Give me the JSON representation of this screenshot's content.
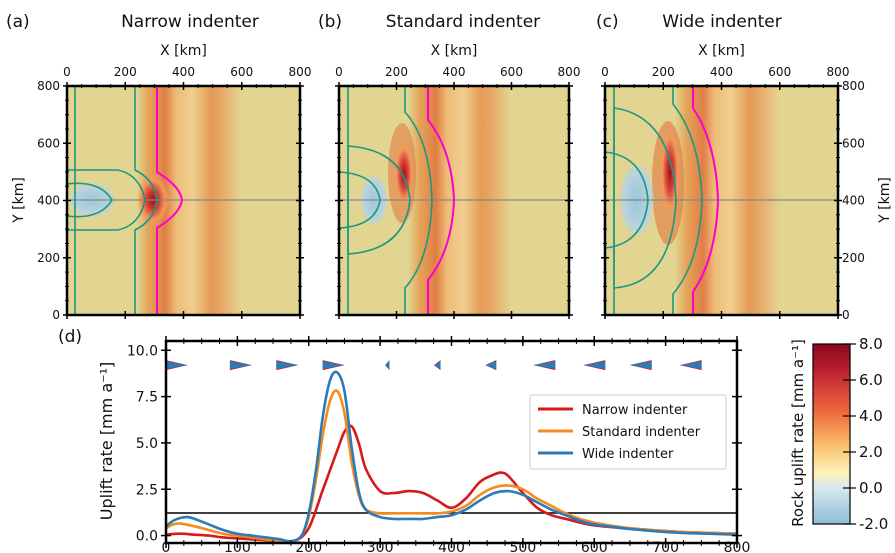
{
  "colors": {
    "narrow": "#d7191c",
    "standard": "#f48b1f",
    "wide": "#2b7bba",
    "plate_boundary": "#ff00cc",
    "contour": "#1a9980",
    "section_line": "#888888",
    "background_field": "#e2d592"
  },
  "maps": [
    {
      "letter": "(a)",
      "title": "Narrow indenter"
    },
    {
      "letter": "(b)",
      "title": "Standard indenter"
    },
    {
      "letter": "(c)",
      "title": "Wide indenter"
    }
  ],
  "map_axes": {
    "xlabel": "X [km]",
    "ylabel": "Y [km]",
    "xticks": [
      "0",
      "200",
      "400",
      "600",
      "800"
    ],
    "yticks": [
      "0",
      "200",
      "400",
      "600",
      "800"
    ]
  },
  "profile_panel": {
    "letter": "(d)",
    "ylabel": "Uplift  rate [mm a⁻¹]",
    "xticks": [
      "0",
      "100",
      "200",
      "300",
      "400",
      "500",
      "600",
      "700",
      "800"
    ],
    "yticks": [
      "0.0",
      "2.5",
      "5.0",
      "7.5",
      "10.0"
    ]
  },
  "colorbar": {
    "label": "Rock uplift rate  [mm a⁻¹]",
    "ticks": [
      "8.0",
      "6.0",
      "4.0",
      "2.0",
      "0.0",
      "-2.0"
    ]
  },
  "chart_data": [
    {
      "type": "line",
      "title": "",
      "xlabel": "",
      "ylabel": "Uplift  rate [mm a⁻¹]",
      "xlim": [
        0,
        800
      ],
      "ylim": [
        -0.4,
        10.5
      ],
      "grid": false,
      "legend": "right",
      "series": [
        {
          "name": "Narrow indenter",
          "x": [
            0,
            20,
            40,
            60,
            80,
            100,
            120,
            140,
            160,
            180,
            200,
            220,
            240,
            250,
            260,
            270,
            280,
            300,
            320,
            340,
            360,
            380,
            400,
            420,
            440,
            460,
            470,
            480,
            500,
            520,
            540,
            560,
            580,
            600,
            640,
            680,
            720,
            760,
            800
          ],
          "y": [
            0.05,
            0.1,
            0.05,
            0.0,
            -0.1,
            -0.15,
            -0.2,
            -0.25,
            -0.3,
            -0.3,
            0.4,
            2.5,
            4.6,
            5.6,
            5.9,
            5.0,
            3.6,
            2.4,
            2.3,
            2.4,
            2.3,
            1.9,
            1.5,
            2.0,
            2.9,
            3.3,
            3.4,
            3.2,
            2.3,
            1.5,
            1.1,
            0.9,
            0.7,
            0.55,
            0.4,
            0.3,
            0.2,
            0.15,
            0.1
          ]
        },
        {
          "name": "Standard indenter",
          "x": [
            0,
            10,
            20,
            40,
            60,
            80,
            100,
            120,
            140,
            160,
            175,
            190,
            200,
            210,
            220,
            230,
            240,
            250,
            260,
            270,
            280,
            300,
            320,
            340,
            360,
            380,
            400,
            420,
            440,
            460,
            480,
            500,
            520,
            540,
            560,
            580,
            600,
            640,
            680,
            720,
            760,
            800
          ],
          "y": [
            0.4,
            0.6,
            0.65,
            0.5,
            0.3,
            0.1,
            0.0,
            -0.1,
            -0.2,
            -0.3,
            -0.4,
            0.0,
            1.0,
            3.0,
            5.5,
            7.3,
            7.8,
            6.6,
            4.0,
            2.2,
            1.4,
            1.2,
            1.2,
            1.2,
            1.2,
            1.2,
            1.3,
            1.6,
            2.2,
            2.6,
            2.7,
            2.5,
            2.0,
            1.6,
            1.2,
            0.9,
            0.7,
            0.45,
            0.3,
            0.2,
            0.15,
            0.1
          ]
        },
        {
          "name": "Wide indenter",
          "x": [
            0,
            10,
            20,
            30,
            40,
            60,
            80,
            100,
            120,
            140,
            160,
            175,
            190,
            200,
            210,
            220,
            230,
            240,
            250,
            260,
            270,
            280,
            300,
            320,
            340,
            360,
            380,
            400,
            420,
            440,
            460,
            480,
            500,
            520,
            540,
            560,
            580,
            600,
            640,
            680,
            720,
            760,
            800
          ],
          "y": [
            0.5,
            0.8,
            0.95,
            1.0,
            0.9,
            0.6,
            0.3,
            0.1,
            0.0,
            -0.1,
            -0.2,
            -0.3,
            0.0,
            1.2,
            3.5,
            6.5,
            8.4,
            8.8,
            7.8,
            4.8,
            2.4,
            1.4,
            1.0,
            0.9,
            0.9,
            0.9,
            1.0,
            1.1,
            1.4,
            1.9,
            2.3,
            2.4,
            2.2,
            1.8,
            1.4,
            1.1,
            0.8,
            0.6,
            0.4,
            0.25,
            0.15,
            0.1,
            0.05
          ]
        }
      ]
    }
  ]
}
